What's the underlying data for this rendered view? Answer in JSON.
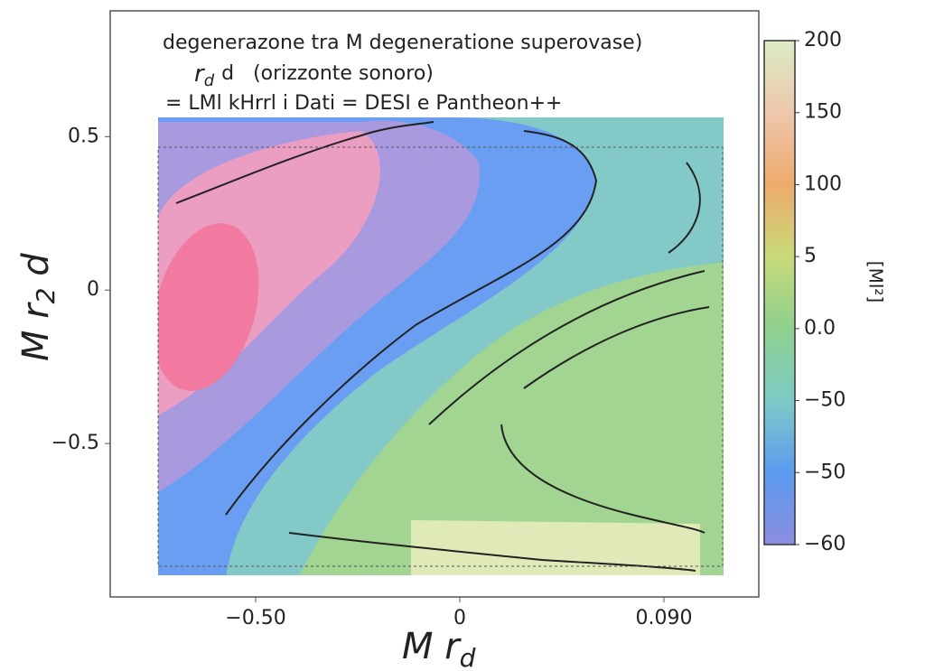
{
  "chart_data": {
    "type": "contour",
    "title": "degenerazone tra M degeneratione superovase)",
    "subtitle": {
      "symbol": "r",
      "sub": "d",
      "text": "d   (orizzonte sonoro)"
    },
    "note": "= LMl kHrrl i Dati = DESI e Pantheon++",
    "xlabel": {
      "main": "M r",
      "sub": "d"
    },
    "ylabel": {
      "main": "M r",
      "sub": "2",
      "rest": " d"
    },
    "xtick_labels": [
      "−0.50",
      "0",
      "0.090"
    ],
    "ylim": [
      -1,
      0.91
    ],
    "yticks": [
      {
        "value": 0.5,
        "label": "0.5"
      },
      0,
      {
        "value": -0.5,
        "label": "−0.5"
      }
    ],
    "colorbar": {
      "labels": [
        "200",
        "150",
        "100",
        "5",
        "0.0",
        "−50",
        "−50",
        "−60"
      ],
      "colors": [
        "#dcebc6",
        "#eec7ad",
        "#eeaa6c",
        "#c8da78",
        "#8fd08e",
        "#7ccbc7",
        "#5b9bf0",
        "#8c8de0"
      ],
      "label": "[Ml²]"
    }
  }
}
